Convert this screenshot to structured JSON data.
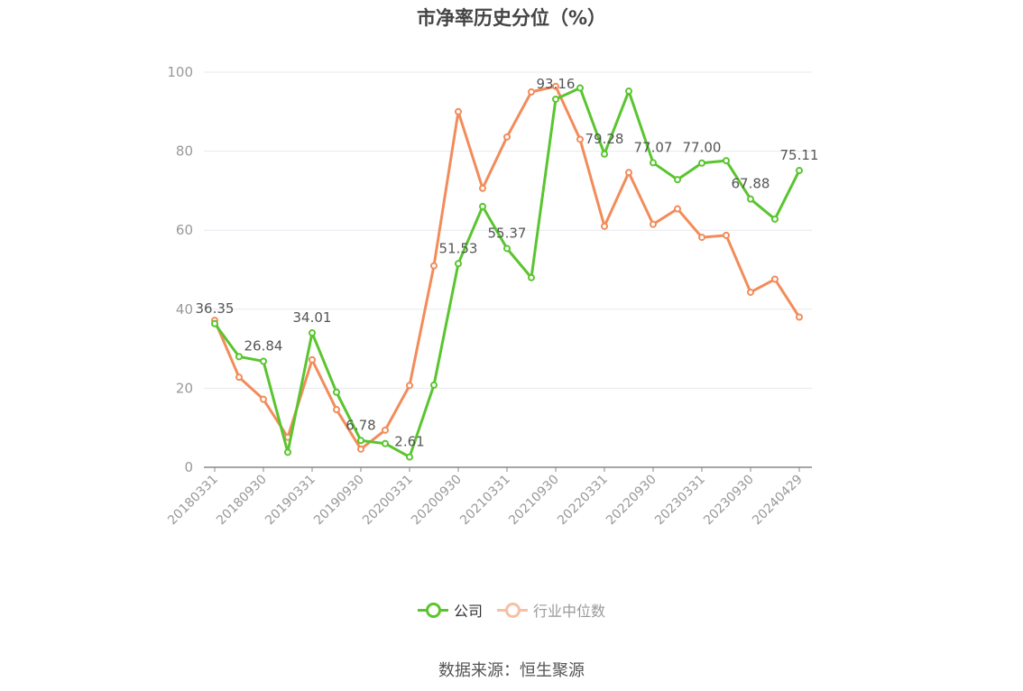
{
  "title": "市净率历史分位（%）",
  "source": "数据来源：恒生聚源",
  "legend": [
    {
      "name": "公司",
      "color": "#5ac52f"
    },
    {
      "name": "行业中位数",
      "color": "#f28c5a"
    }
  ],
  "chart_data": {
    "type": "line",
    "x": [
      "20180331",
      "20180630",
      "20180930",
      "20181231",
      "20190331",
      "20190630",
      "20190930",
      "20191231",
      "20200331",
      "20200630",
      "20200930",
      "20201231",
      "20210331",
      "20210630",
      "20210930",
      "20211231",
      "20220331",
      "20220630",
      "20220930",
      "20221231",
      "20230331",
      "20230630",
      "20230930",
      "20231231",
      "20240429"
    ],
    "x_tick_labels": [
      "20180331",
      "20180930",
      "20190331",
      "20190930",
      "20200331",
      "20200930",
      "20210331",
      "20210930",
      "20220331",
      "20220930",
      "20230331",
      "20230930",
      "20240429"
    ],
    "ylim": [
      0,
      100
    ],
    "y_ticks": [
      0,
      20,
      40,
      60,
      80,
      100
    ],
    "grid": true,
    "legend_position": "bottom",
    "series": [
      {
        "name": "公司",
        "color": "#5ac52f",
        "values": [
          36.35,
          28.0,
          26.84,
          3.8,
          34.01,
          19.0,
          6.78,
          6.0,
          2.61,
          20.8,
          51.53,
          66.0,
          55.37,
          48.0,
          93.16,
          96.0,
          79.28,
          95.2,
          77.07,
          72.8,
          77.0,
          77.6,
          67.88,
          62.8,
          75.11
        ],
        "labels": [
          "36.35",
          "",
          "26.84",
          "",
          "34.01",
          "",
          "6.78",
          "",
          "2.61",
          "",
          "51.53",
          "",
          "55.37",
          "",
          "93.16",
          "",
          "79.28",
          "",
          "77.07",
          "",
          "77.00",
          "",
          "67.88",
          "",
          "75.11"
        ]
      },
      {
        "name": "行业中位数",
        "color": "#f28c5a",
        "values": [
          37.2,
          22.8,
          17.2,
          7.6,
          27.2,
          14.6,
          4.6,
          9.4,
          20.7,
          51.0,
          90.0,
          70.6,
          83.6,
          95.0,
          96.4,
          83.0,
          61.0,
          74.6,
          61.5,
          65.4,
          58.2,
          58.7,
          44.3,
          47.6,
          38.0
        ]
      }
    ]
  }
}
